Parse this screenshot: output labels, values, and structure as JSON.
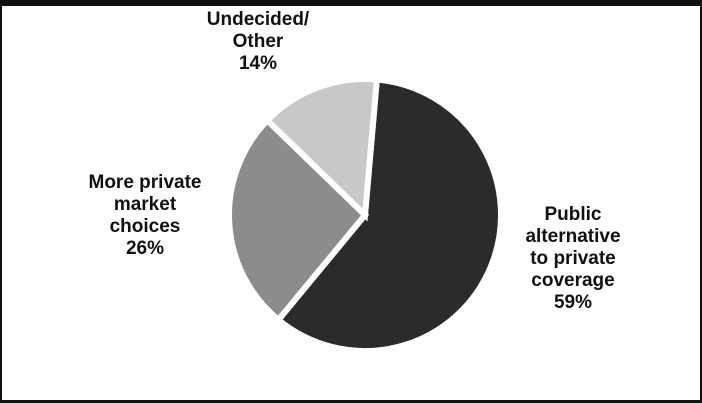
{
  "chart_data": {
    "type": "pie",
    "title": "",
    "slices": [
      {
        "label_lines": [
          "Public",
          "alternative",
          "to private",
          "coverage"
        ],
        "value_label": "59%",
        "value": 59,
        "color": "#2b2b2b"
      },
      {
        "label_lines": [
          "More private",
          "market",
          "choices"
        ],
        "value_label": "26%",
        "value": 26,
        "color": "#8c8c8c"
      },
      {
        "label_lines": [
          "Undecided/",
          "Other"
        ],
        "value_label": "14%",
        "value": 14,
        "color": "#c8c8c8"
      }
    ],
    "background": "#ffffff",
    "separator_color": "#ffffff"
  }
}
